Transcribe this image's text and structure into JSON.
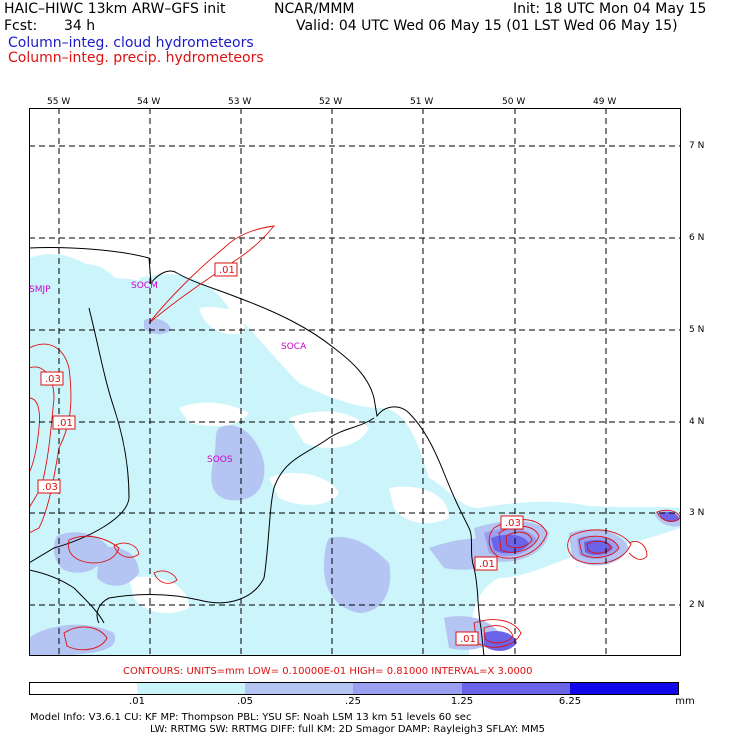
{
  "header": {
    "model_title": "HAIC–HIWC 13km ARW–GFS init",
    "org": "NCAR/MMM",
    "init": "Init: 18 UTC Mon 04 May 15",
    "fcst_label": "Fcst:",
    "fcst_value": "34 h",
    "valid": "Valid: 04 UTC Wed 06 May 15 (01 LST Wed 06 May 15)",
    "field1": "Column–integ. cloud hydrometeors",
    "field2": "Column–integ. precip. hydrometeors"
  },
  "colors": {
    "field1": "#1a1acd",
    "field2": "#e01010",
    "land_outline": "#000000",
    "station_label": "#cc00cc"
  },
  "map": {
    "lon_labels": [
      "55 W",
      "54 W",
      "53 W",
      "52 W",
      "51 W",
      "50 W",
      "49 W"
    ],
    "lat_labels": [
      "7 N",
      "6 N",
      "5 N",
      "4 N",
      "3 N",
      "2 N"
    ],
    "stations": [
      "SMJP",
      "SOCM",
      "SOCA",
      "SOOS"
    ],
    "contour_labels": [
      ".01",
      ".03",
      ".01",
      ".03",
      ".03",
      ".01",
      ".01"
    ]
  },
  "contour_info": "CONTOURS:  UNITS=mm  LOW= 0.10000E-01  HIGH= 0.81000     INTERVAL=X  3.0000",
  "colorbar": {
    "colors": [
      "#ffffff",
      "#ccf5fb",
      "#b4c4f3",
      "#9aa0ef",
      "#6b64e9",
      "#3a2ee0",
      "#1206ea"
    ],
    "ticks": [
      ".01",
      ".05",
      ".25",
      "1.25",
      "6.25"
    ],
    "unit": "mm"
  },
  "footer": {
    "line1": "Model Info: V3.6.1     CU: KF        MP: Thompson      PBL: YSU       SF: Noah LSM      13 km     51 levels    60 sec",
    "line2": "LW: RRTMG     SW: RRTMG   DIFF: full     KM: 2D Smagor DAMP: Rayleigh3  SFLAY: MM5"
  }
}
